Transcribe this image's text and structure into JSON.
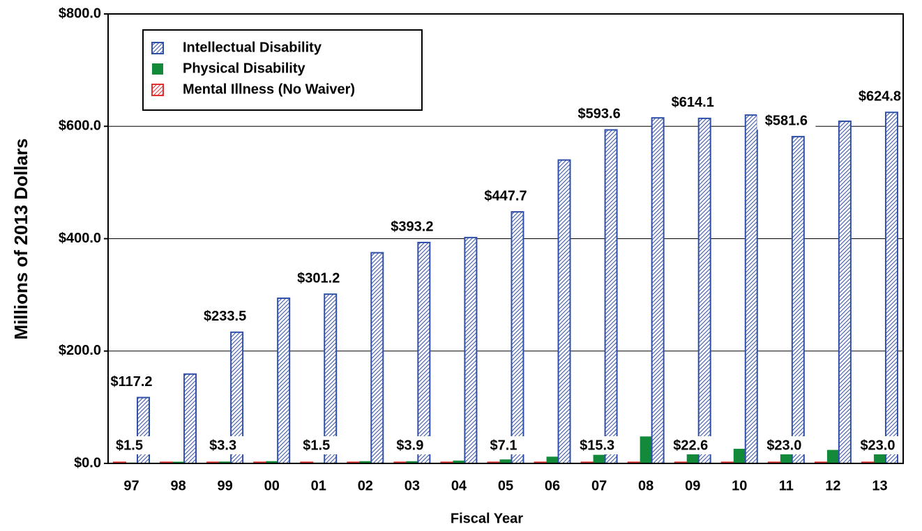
{
  "chart_data": {
    "type": "bar",
    "x_label": "Fiscal Year",
    "y_label": "Millions of 2013 Dollars",
    "categories": [
      "97",
      "98",
      "99",
      "00",
      "01",
      "02",
      "03",
      "04",
      "05",
      "06",
      "07",
      "08",
      "09",
      "10",
      "11",
      "12",
      "13"
    ],
    "series": [
      {
        "name": "Mental Illness (No Waiver)",
        "color": "#e03030",
        "values": [
          2,
          2,
          2,
          2,
          2,
          2,
          2,
          2,
          2,
          2,
          2,
          2,
          2,
          2,
          2,
          2,
          2
        ]
      },
      {
        "name": "Physical Disability",
        "color": "#138a3a",
        "values": [
          1.5,
          3,
          3.3,
          4,
          1.5,
          4,
          3.9,
          5,
          7.1,
          12,
          15.3,
          48,
          22.6,
          26,
          23.0,
          24,
          23.0
        ],
        "value_labels": [
          "$1.5",
          null,
          "$3.3",
          null,
          "$1.5",
          null,
          "$3.9",
          null,
          "$7.1",
          null,
          "$15.3",
          null,
          "$22.6",
          null,
          "$23.0",
          null,
          "$23.0"
        ]
      },
      {
        "name": "Intellectual Disability",
        "color": "#2f4fa8",
        "values": [
          117.2,
          159,
          233.5,
          294,
          301.2,
          375,
          393.2,
          402,
          447.7,
          540,
          593.6,
          615,
          614.1,
          620,
          581.6,
          609,
          624.8
        ],
        "value_labels": [
          "$117.2",
          null,
          "$233.5",
          null,
          "$301.2",
          null,
          "$393.2",
          null,
          "$447.7",
          null,
          "$593.6",
          null,
          "$614.1",
          null,
          "$581.6",
          null,
          "$624.8"
        ]
      }
    ],
    "ylim": [
      0,
      800
    ],
    "yticks": [
      {
        "value": 0,
        "label": "$0.0"
      },
      {
        "value": 200,
        "label": "$200.0"
      },
      {
        "value": 400,
        "label": "$400.0"
      },
      {
        "value": 600,
        "label": "$600.0"
      },
      {
        "value": 800,
        "label": "$800.0"
      }
    ],
    "grid": true
  }
}
